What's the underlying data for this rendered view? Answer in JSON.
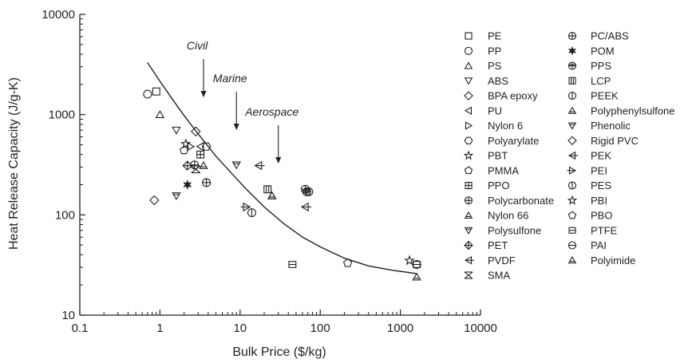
{
  "chart_data": {
    "type": "scatter",
    "title": "",
    "xlabel": "Bulk Price ($/kg)",
    "ylabel": "Heat Release Capacity (J/g-K)",
    "xscale": "log",
    "yscale": "log",
    "xlim": [
      0.1,
      10000
    ],
    "ylim": [
      10,
      10000
    ],
    "x_ticks": [
      "0.1",
      "1",
      "10",
      "100",
      "1000",
      "10000"
    ],
    "y_ticks": [
      "10",
      "100",
      "1000",
      "10000"
    ],
    "legend_placement": "right",
    "annotations": [
      {
        "text": "Civil",
        "x": 3.5
      },
      {
        "text": "Marine",
        "x": 9
      },
      {
        "text": "Aerospace",
        "x": 30
      }
    ],
    "trend_curve": {
      "x": [
        0.7,
        1,
        1.5,
        2,
        3,
        5,
        8,
        12,
        20,
        35,
        60,
        100,
        200,
        400,
        800,
        1600
      ],
      "y": [
        3300,
        2150,
        1350,
        980,
        640,
        385,
        255,
        180,
        120,
        82,
        60,
        48,
        37,
        31,
        28,
        26
      ]
    },
    "series": [
      {
        "name": "PE",
        "marker": "square",
        "x": [
          0.9
        ],
        "y": [
          1700
        ]
      },
      {
        "name": "PP",
        "marker": "circle",
        "x": [
          0.7
        ],
        "y": [
          1600
        ]
      },
      {
        "name": "PS",
        "marker": "triangle-up",
        "x": [
          1.0
        ],
        "y": [
          1000
        ]
      },
      {
        "name": "ABS",
        "marker": "triangle-down",
        "x": [
          1.6
        ],
        "y": [
          700
        ]
      },
      {
        "name": "BPA epoxy",
        "marker": "diamond",
        "x": [
          2.8
        ],
        "y": [
          680
        ]
      },
      {
        "name": "PU",
        "marker": "triangle-left",
        "x": [
          3.2
        ],
        "y": [
          480
        ]
      },
      {
        "name": "Nylon 6",
        "marker": "triangle-right",
        "x": [
          2.4
        ],
        "y": [
          480
        ]
      },
      {
        "name": "Polyarylate",
        "marker": "hexagon",
        "x": [
          3.8
        ],
        "y": [
          480
        ]
      },
      {
        "name": "PBT",
        "marker": "star",
        "x": [
          2.1
        ],
        "y": [
          510
        ]
      },
      {
        "name": "PMMA",
        "marker": "pentagon",
        "x": [
          2.0
        ],
        "y": [
          440
        ]
      },
      {
        "name": "PPO",
        "marker": "square-plus",
        "x": [
          3.2
        ],
        "y": [
          400
        ]
      },
      {
        "name": "Polycarbonate",
        "marker": "circle-plus",
        "x": [
          3.8,
          2.7
        ],
        "y": [
          210,
          315
        ]
      },
      {
        "name": "Nylon 66",
        "marker": "triangle-up-line",
        "x": [
          3.5,
          25
        ],
        "y": [
          310,
          155
        ]
      },
      {
        "name": "Polysulfone",
        "marker": "triangle-down-line",
        "x": [
          9
        ],
        "y": [
          315
        ]
      },
      {
        "name": "PET",
        "marker": "diamond-plus",
        "x": [
          2.2
        ],
        "y": [
          310
        ]
      },
      {
        "name": "PVDF",
        "marker": "triangle-left-line",
        "x": [
          17
        ],
        "y": [
          310
        ]
      },
      {
        "name": "SMA",
        "marker": "x-cross",
        "x": [
          2.8
        ],
        "y": [
          285
        ]
      },
      {
        "name": "PC/ABS",
        "marker": "circle-plus",
        "x": [
          65
        ],
        "y": [
          180
        ]
      },
      {
        "name": "POM",
        "marker": "star-six",
        "x": [
          2.2
        ],
        "y": [
          200
        ]
      },
      {
        "name": "PPS",
        "marker": "circle-cross",
        "x": [
          68
        ],
        "y": [
          170
        ]
      },
      {
        "name": "LCP",
        "marker": "square-bars",
        "x": [
          22
        ],
        "y": [
          180
        ]
      },
      {
        "name": "PEEK",
        "marker": "circle-bar",
        "x": [
          72
        ],
        "y": [
          170
        ]
      },
      {
        "name": "Polyphenylsulfone",
        "marker": "triangle-up-line",
        "x": [
          25
        ],
        "y": [
          155
        ]
      },
      {
        "name": "Phenolic",
        "marker": "triangle-down-line",
        "x": [
          1.6
        ],
        "y": [
          155
        ]
      },
      {
        "name": "Rigid PVC",
        "marker": "diamond",
        "x": [
          0.85
        ],
        "y": [
          140
        ]
      },
      {
        "name": "PEK",
        "marker": "triangle-left-line",
        "x": [
          65
        ],
        "y": [
          120
        ]
      },
      {
        "name": "PEI",
        "marker": "triangle-right-line",
        "x": [
          12
        ],
        "y": [
          120
        ]
      },
      {
        "name": "PES",
        "marker": "circle-bar",
        "x": [
          14
        ],
        "y": [
          105
        ]
      },
      {
        "name": "PBI",
        "marker": "star",
        "x": [
          1300
        ],
        "y": [
          35
        ]
      },
      {
        "name": "PBO",
        "marker": "pentagon",
        "x": [
          220
        ],
        "y": [
          33
        ]
      },
      {
        "name": "PTFE",
        "marker": "square-line",
        "x": [
          45,
          1600
        ],
        "y": [
          32,
          32
        ]
      },
      {
        "name": "PAI",
        "marker": "circle-line",
        "x": [
          1600
        ],
        "y": [
          32
        ]
      },
      {
        "name": "Polyimide",
        "marker": "triangle-up-line",
        "x": [
          1600
        ],
        "y": [
          24
        ]
      }
    ],
    "legend_col1": [
      "PE",
      "PP",
      "PS",
      "ABS",
      "BPA epoxy",
      "PU",
      "Nylon 6",
      "Polyarylate",
      "PBT",
      "PMMA",
      "PPO",
      "Polycarbonate",
      "Nylon 66",
      "Polysulfone",
      "PET",
      "PVDF",
      "SMA"
    ],
    "legend_col2": [
      "PC/ABS",
      "POM",
      "PPS",
      "LCP",
      "PEEK",
      "Polyphenylsulfone",
      "Phenolic",
      "Rigid PVC",
      "PEK",
      "PEI",
      "PES",
      "PBI",
      "PBO",
      "PTFE",
      "PAI",
      "Polyimide"
    ],
    "colors": {
      "ink": "#231f20",
      "background": "#ffffff"
    }
  }
}
